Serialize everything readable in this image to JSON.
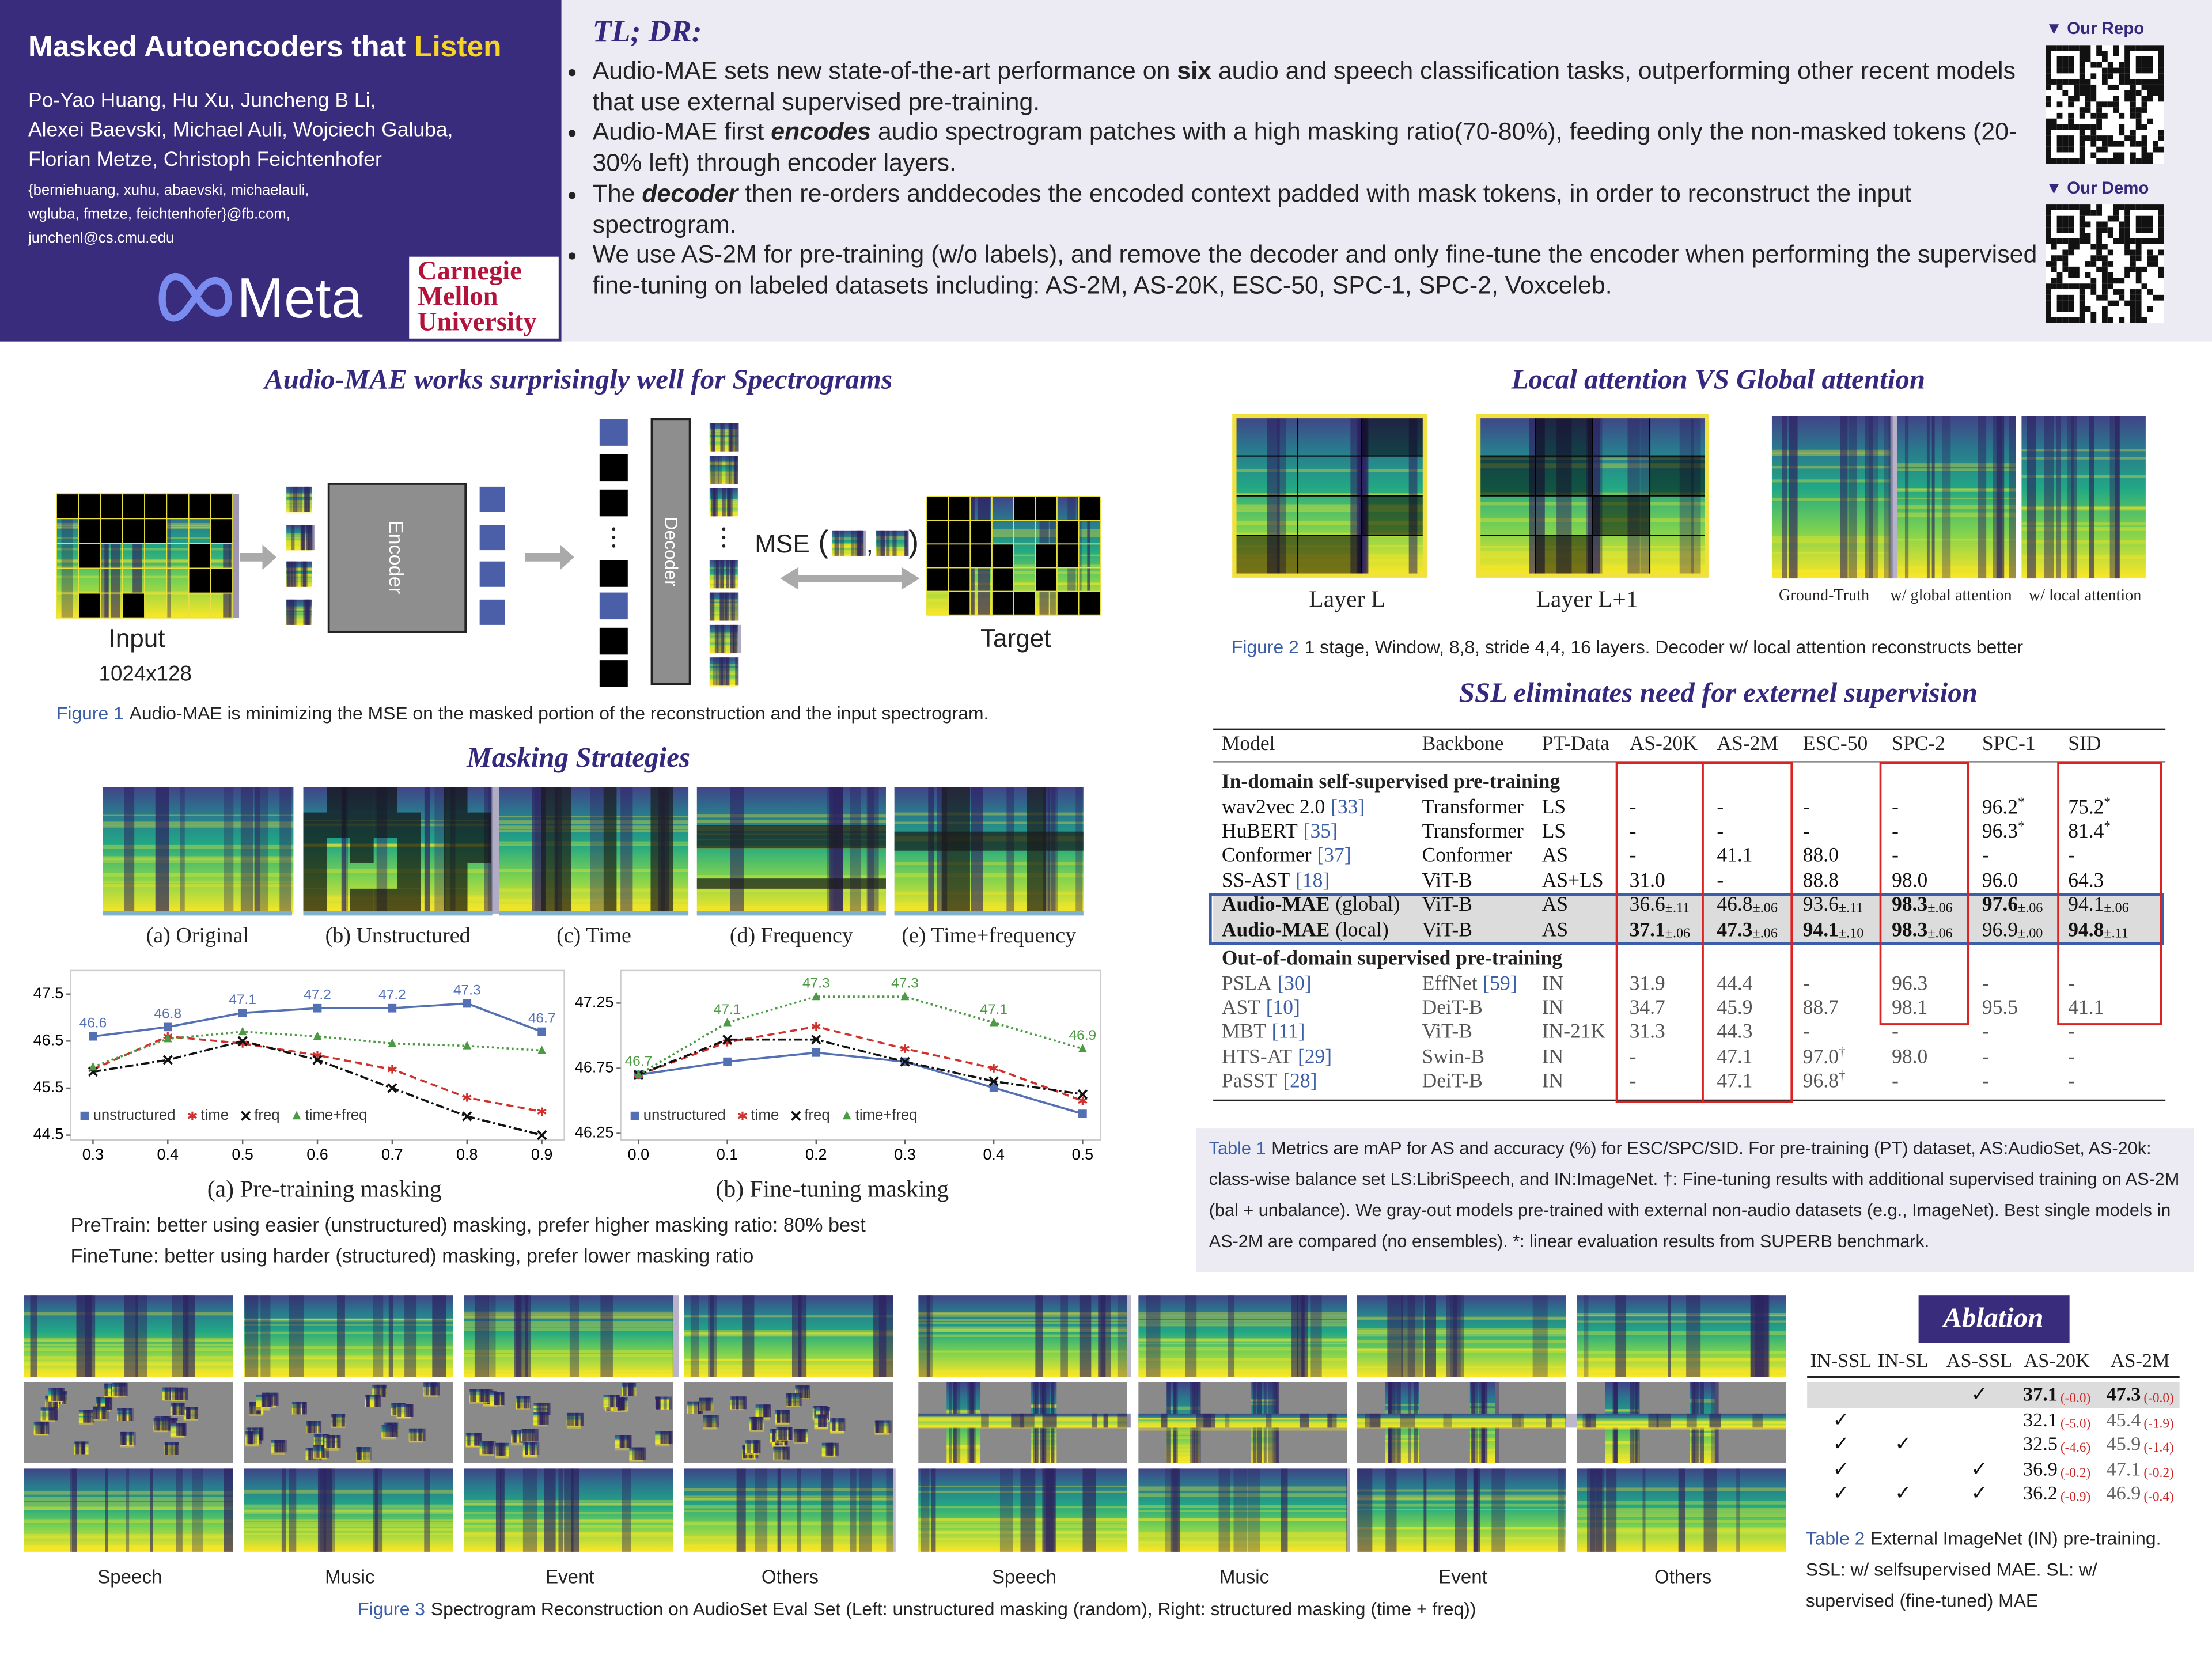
{
  "header": {
    "title": "Masked Autoencoders that",
    "title_highlight": "Listen",
    "authors": [
      "Po-Yao Huang, Hu Xu, Juncheng B Li,",
      "Alexei Baevski, Michael Auli, Wojciech Galuba,",
      "Florian Metze, Christoph Feichtenhofer"
    ],
    "emails": [
      "{berniehuang, xuhu, abaevski, michaelauli,",
      "wgluba, fmetze, feichtenhofer}@fb.com,",
      "junchenl@cs.cmu.edu"
    ],
    "logo_meta": "Meta",
    "logo_cmu": [
      "Carnegie",
      "Mellon",
      "University"
    ]
  },
  "tldr": {
    "heading": "TL; DR:",
    "bullets": [
      [
        {
          "text": "Audio-MAE sets new state-of-the-art performance on "
        },
        {
          "text": "six",
          "style": "bold"
        },
        {
          "text": " audio and speech classification tasks, outperforming other recent models that use external supervised pre-training."
        }
      ],
      [
        {
          "text": "Audio-MAE first "
        },
        {
          "text": "encodes",
          "style": "bold-italic"
        },
        {
          "text": " audio spectrogram patches with a high masking ratio(70-80%), feeding only the non-masked tokens (20-30% left) through encoder layers."
        }
      ],
      [
        {
          "text": "The "
        },
        {
          "text": "decoder",
          "style": "bold-italic"
        },
        {
          "text": " then re-orders anddecodes the encoded context padded with mask tokens, in order to reconstruct the input spectrogram."
        }
      ],
      [
        {
          "text": "We use AS-2M for pre-training (w/o labels), and remove the decoder and only fine-tune the encoder when performing the supervised fine-tuning on labeled datasets including: AS-2M, AS-20K, ESC-50, SPC-1, SPC-2, Voxceleb."
        }
      ]
    ]
  },
  "links": [
    {
      "label": "▼ Our Repo"
    },
    {
      "label": "▼ Our Demo"
    }
  ],
  "figure1": {
    "title": "Audio-MAE works surprisingly well for Spectrograms",
    "encoder": "Encoder",
    "decoder": "Decoder",
    "input": "Input",
    "input_size": "1024x128",
    "target": "Target",
    "mse": [
      "MSE",
      "(",
      ",",
      ")"
    ],
    "caption_label": "Figure 1",
    "caption": "Audio-MAE is minimizing the MSE on the masked portion of the reconstruction and the input spectrogram."
  },
  "masking": {
    "title": "Masking Strategies",
    "panels": [
      "(a) Original",
      "(b) Unstructured",
      "(c) Time",
      "(d) Frequency",
      "(e) Time+frequency"
    ],
    "notes": [
      "PreTrain: better using easier (unstructured) masking, prefer higher masking ratio: 80% best",
      "FineTune: better using harder (structured) masking, prefer lower masking ratio"
    ]
  },
  "chart_data": [
    {
      "type": "line",
      "title": "(a) Pre-training masking",
      "x": [
        0.3,
        0.4,
        0.5,
        0.6,
        0.7,
        0.8,
        0.9
      ],
      "xlim": [
        0.27,
        0.93
      ],
      "xticks": [
        0.3,
        0.4,
        0.5,
        0.6,
        0.7,
        0.8,
        0.9
      ],
      "ylim": [
        44.4,
        48.0
      ],
      "yticks": [
        44.5,
        45.5,
        46.5,
        47.5
      ],
      "legend": "lower left",
      "series": [
        {
          "name": "unstructured",
          "color": "#5470b4",
          "marker": "square",
          "dash": "solid",
          "show_labels": true,
          "values": [
            46.6,
            46.8,
            47.1,
            47.2,
            47.2,
            47.3,
            46.7
          ]
        },
        {
          "name": "time",
          "color": "#d0312d",
          "marker": "star",
          "dash": "dashed",
          "values": [
            45.9,
            46.6,
            46.45,
            46.2,
            45.9,
            45.3,
            45.0
          ]
        },
        {
          "name": "freq",
          "color": "#111111",
          "marker": "x",
          "dash": "dashdot",
          "values": [
            45.85,
            46.1,
            46.5,
            46.1,
            45.5,
            44.9,
            44.5
          ]
        },
        {
          "name": "time+freq",
          "color": "#4c9a44",
          "marker": "triangle",
          "dash": "dotted",
          "values": [
            45.95,
            46.55,
            46.7,
            46.6,
            46.45,
            46.4,
            46.3
          ]
        }
      ]
    },
    {
      "type": "line",
      "title": "(b) Fine-tuning masking",
      "x": [
        0,
        0.1,
        0.2,
        0.3,
        0.4,
        0.5
      ],
      "xlim": [
        -0.02,
        0.52
      ],
      "xticks": [
        {
          "value": 0,
          "label": "0.0"
        },
        0.1,
        0.2,
        0.3,
        0.4,
        0.5
      ],
      "ylim": [
        46.2,
        47.5
      ],
      "yticks": [
        46.25,
        46.75,
        47.25
      ],
      "legend": "lower left",
      "series": [
        {
          "name": "unstructured",
          "color": "#5470b4",
          "marker": "square",
          "dash": "solid",
          "values": [
            46.7,
            46.8,
            46.87,
            46.8,
            46.6,
            46.4
          ]
        },
        {
          "name": "time",
          "color": "#d0312d",
          "marker": "star",
          "dash": "dashed",
          "values": [
            46.7,
            46.95,
            47.07,
            46.9,
            46.75,
            46.5
          ]
        },
        {
          "name": "freq",
          "color": "#111111",
          "marker": "x",
          "dash": "dashdot",
          "values": [
            46.7,
            46.97,
            46.97,
            46.8,
            46.65,
            46.55
          ]
        },
        {
          "name": "time+freq",
          "color": "#4c9a44",
          "marker": "triangle",
          "dash": "dotted",
          "show_labels": true,
          "values": [
            46.7,
            47.1,
            47.3,
            47.3,
            47.1,
            46.9
          ]
        }
      ]
    }
  ],
  "figure2": {
    "title": "Local attention VS Global attention",
    "layers": [
      "Layer L",
      "Layer L+1"
    ],
    "panels": [
      "Ground-Truth",
      "w/ global attention",
      "w/ local attention"
    ],
    "caption_label": "Figure 2",
    "caption": "1 stage, Window, 8,8, stride 4,4, 16 layers. Decoder w/ local attention reconstructs better"
  },
  "table1": {
    "title": "SSL eliminates need for externel supervision",
    "columns": [
      "Model",
      "Backbone",
      "PT-Data",
      "AS-20K",
      "AS-2M",
      "ESC-50",
      "SPC-2",
      "SPC-1",
      "SID"
    ],
    "groups": [
      {
        "name": "In-domain self-supervised pre-training",
        "rows": [
          [
            {
              "text": "wav2vec 2.0",
              "ref": "[33]"
            },
            "Transformer",
            "LS",
            "-",
            "-",
            "-",
            "-",
            {
              "text": "96.2",
              "sup": "*"
            },
            {
              "text": "75.2",
              "sup": "*"
            }
          ],
          [
            {
              "text": "HuBERT",
              "ref": "[35]"
            },
            "Transformer",
            "LS",
            "-",
            "-",
            "-",
            "-",
            {
              "text": "96.3",
              "sup": "*"
            },
            {
              "text": "81.4",
              "sup": "*"
            }
          ],
          [
            {
              "text": "Conformer",
              "ref": "[37]"
            },
            "Conformer",
            "AS",
            "-",
            "41.1",
            "88.0",
            "-",
            "-",
            "-"
          ],
          [
            {
              "text": "SS-AST",
              "ref": "[18]"
            },
            "ViT-B",
            "AS+LS",
            "31.0",
            "-",
            "88.8",
            "98.0",
            "96.0",
            "64.3"
          ],
          [
            {
              "text": "Audio-MAE",
              "bold": true,
              "suffix": "(global)"
            },
            "ViT-B",
            "AS",
            {
              "text": "36.6",
              "sub": "±.11"
            },
            {
              "text": "46.8",
              "sub": "±.06"
            },
            {
              "text": "93.6",
              "sub": "±.11"
            },
            {
              "text": "98.3",
              "sub": "±.06",
              "bold": true
            },
            {
              "text": "97.6",
              "sub": "±.06",
              "bold": true
            },
            {
              "text": "94.1",
              "sub": "±.06"
            }
          ],
          [
            {
              "text": "Audio-MAE",
              "bold": true,
              "suffix": "(local)"
            },
            "ViT-B",
            "AS",
            {
              "text": "37.1",
              "sub": "±.06",
              "bold": true
            },
            {
              "text": "47.3",
              "sub": "±.06",
              "bold": true
            },
            {
              "text": "94.1",
              "sub": "±.10",
              "bold": true
            },
            {
              "text": "98.3",
              "sub": "±.06",
              "bold": true
            },
            {
              "text": "96.9",
              "sub": "±.00"
            },
            {
              "text": "94.8",
              "sub": "±.11",
              "bold": true
            }
          ]
        ]
      },
      {
        "name": "Out-of-domain supervised pre-training",
        "gray": true,
        "rows": [
          [
            {
              "text": "PSLA",
              "ref": "[30]"
            },
            {
              "text": "EffNet",
              "ref": "[59]"
            },
            "IN",
            "31.9",
            "44.4",
            "-",
            "96.3",
            "-",
            "-"
          ],
          [
            {
              "text": "AST",
              "ref": "[10]"
            },
            "DeiT-B",
            "IN",
            "34.7",
            "45.9",
            "88.7",
            "98.1",
            "95.5",
            "41.1"
          ],
          [
            {
              "text": "MBT",
              "ref": "[11]"
            },
            "ViT-B",
            "IN-21K",
            "31.3",
            "44.3",
            "-",
            "-",
            "-",
            "-"
          ],
          [
            {
              "text": "HTS-AT",
              "ref": "[29]"
            },
            "Swin-B",
            "IN",
            "-",
            "47.1",
            {
              "text": "97.0",
              "sup": "†"
            },
            "98.0",
            "-",
            "-"
          ],
          [
            {
              "text": "PaSST",
              "ref": "[28]"
            },
            "DeiT-B",
            "IN",
            "-",
            "47.1",
            {
              "text": "96.8",
              "sup": "†"
            },
            "-",
            "-",
            "-"
          ]
        ]
      }
    ],
    "caption_label": "Table 1",
    "caption": "Metrics are mAP for AS and accuracy (%) for ESC/SPC/SID. For pre-training (PT) dataset, AS:AudioSet, AS-20k: class-wise balance set LS:LibriSpeech, and IN:ImageNet. †: Fine-tuning results with additional supervised training on AS-2M (bal + unbalance). We gray-out models pre-trained with external non-audio datasets (e.g., ImageNet). Best single models in AS-2M are compared (no ensembles). *: linear evaluation results from SUPERB benchmark."
  },
  "figure3": {
    "labels": [
      "Speech",
      "Music",
      "Event",
      "Others",
      "Speech",
      "Music",
      "Event",
      "Others"
    ],
    "caption_label": "Figure 3",
    "caption": "Spectrogram Reconstruction on AudioSet Eval Set (Left: unstructured masking (random), Right: structured masking (time + freq))"
  },
  "table2": {
    "title": "Ablation",
    "columns": [
      "IN-SSL",
      "IN-SL",
      "AS-SSL",
      "AS-20K",
      "AS-2M"
    ],
    "rows": [
      [
        null,
        null,
        "✓",
        {
          "text": "37.1",
          "sub": "(-0.0)",
          "bold": true
        },
        {
          "text": "47.3",
          "sub": "(-0.0)",
          "bold": true
        }
      ],
      [
        "✓",
        null,
        null,
        {
          "text": "32.1",
          "sub": "(-5.0)"
        },
        {
          "text": "45.4",
          "sub": "(-1.9)"
        }
      ],
      [
        "✓",
        "✓",
        null,
        {
          "text": "32.5",
          "sub": "(-4.6)"
        },
        {
          "text": "45.9",
          "sub": "(-1.4)"
        }
      ],
      [
        "✓",
        null,
        "✓",
        {
          "text": "36.9",
          "sub": "(-0.2)"
        },
        {
          "text": "47.1",
          "sub": "(-0.2)"
        }
      ],
      [
        "✓",
        "✓",
        "✓",
        {
          "text": "36.2",
          "sub": "(-0.9)"
        },
        {
          "text": "46.9",
          "sub": "(-0.4)"
        }
      ]
    ],
    "caption_label": "Table 2",
    "caption": "External ImageNet (IN) pre-training. SSL: w/ selfsupervised MAE. SL: w/ supervised (fine-tuned) MAE"
  }
}
